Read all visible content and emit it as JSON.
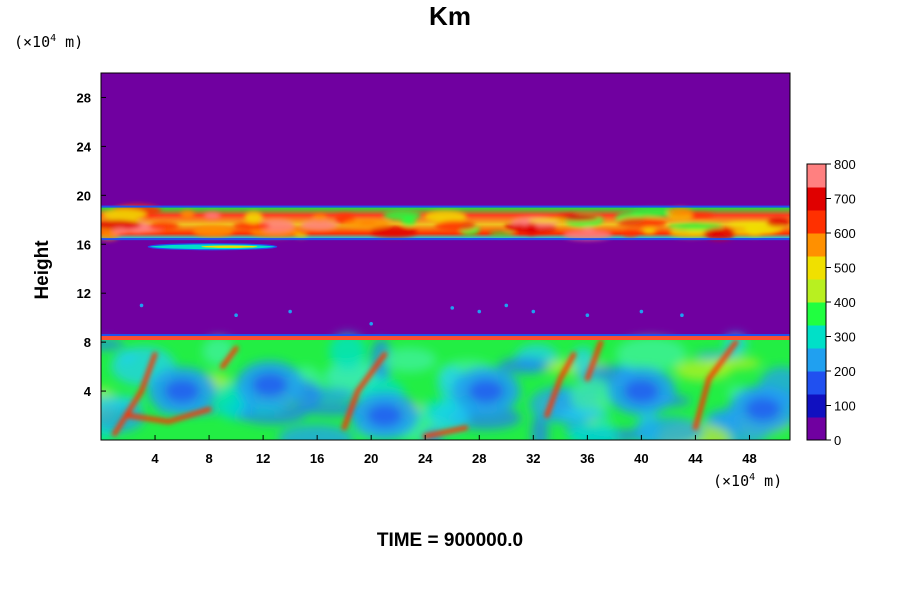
{
  "chart_data": {
    "type": "heatmap",
    "title": "Km",
    "ylabel": "Height",
    "xlabel": "",
    "y_unit": "(×10⁴ m)",
    "x_unit": "(×10⁴ m)",
    "x_unit_prefix": "(×10",
    "x_unit_exp": "4",
    "x_unit_suffix": " m)",
    "xlim": [
      0,
      51
    ],
    "ylim": [
      0,
      30
    ],
    "x_ticks": [
      4,
      8,
      12,
      16,
      20,
      24,
      28,
      32,
      36,
      40,
      44,
      48
    ],
    "y_ticks": [
      4,
      8,
      12,
      16,
      20,
      24,
      28
    ],
    "colorbar": {
      "range": [
        0,
        800
      ],
      "tick_values": [
        0,
        100,
        200,
        300,
        400,
        500,
        600,
        700,
        800
      ],
      "tick_labels": [
        "0",
        "100",
        "200",
        "300",
        "400",
        "500",
        "600",
        "700",
        "800"
      ],
      "colors": [
        "#7000a0",
        "#1010c0",
        "#2050f0",
        "#20a0f0",
        "#00e0c8",
        "#20ff40",
        "#b8f020",
        "#f0e000",
        "#ff9000",
        "#ff3000",
        "#e00000",
        "#ff8080"
      ]
    },
    "background_value": 0,
    "regions": [
      {
        "name": "lower turbulent layer",
        "y_range": [
          0,
          8.5
        ],
        "typical_value": 300
      },
      {
        "name": "upper turbulent layer",
        "y_range": [
          16.5,
          19
        ],
        "typical_value": 550
      },
      {
        "name": "thin filament",
        "x_range": [
          3.5,
          13
        ],
        "y_range": [
          15.6,
          16.0
        ],
        "typical_value": 350
      }
    ],
    "grid": false,
    "legend": "colorbar right"
  },
  "footer": {
    "time_label": "TIME = 900000.0"
  }
}
